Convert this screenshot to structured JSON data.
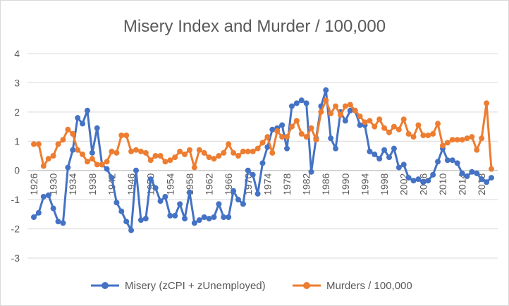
{
  "chart_data": {
    "type": "line",
    "title": "Misery Index and Murder / 100,000",
    "xlabel": "",
    "ylabel": "",
    "ylim": [
      -3,
      4
    ],
    "y_ticks": [
      "4",
      "3",
      "2",
      "1",
      "0",
      "-1",
      "-2",
      "-3"
    ],
    "x_tick_labels": [
      "1926",
      "1930",
      "1934",
      "1938",
      "1942",
      "1946",
      "1950",
      "1954",
      "1958",
      "1962",
      "1966",
      "1970",
      "1974",
      "1978",
      "1982",
      "1986",
      "1990",
      "1994",
      "1998",
      "2002",
      "2006",
      "2010",
      "2014",
      "2018"
    ],
    "x": [
      1926,
      1927,
      1928,
      1929,
      1930,
      1931,
      1932,
      1933,
      1934,
      1935,
      1936,
      1937,
      1938,
      1939,
      1940,
      1941,
      1942,
      1943,
      1944,
      1945,
      1946,
      1947,
      1948,
      1949,
      1950,
      1951,
      1952,
      1953,
      1954,
      1955,
      1956,
      1957,
      1958,
      1959,
      1960,
      1961,
      1962,
      1963,
      1964,
      1965,
      1966,
      1967,
      1968,
      1969,
      1970,
      1971,
      1972,
      1973,
      1974,
      1975,
      1976,
      1977,
      1978,
      1979,
      1980,
      1981,
      1982,
      1983,
      1984,
      1985,
      1986,
      1987,
      1988,
      1989,
      1990,
      1991,
      1992,
      1993,
      1994,
      1995,
      1996,
      1997,
      1998,
      1999,
      2000,
      2001,
      2002,
      2003,
      2004,
      2005,
      2006,
      2007,
      2008,
      2009,
      2010,
      2011,
      2012,
      2013,
      2014,
      2015,
      2016,
      2017,
      2018,
      2019,
      2020
    ],
    "legend_position": "bottom",
    "grid": true,
    "series": [
      {
        "name": "Misery (zCPI + zUnemployed)",
        "color": "#4472C4",
        "values": [
          -1.6,
          -1.45,
          -0.9,
          -0.85,
          -1.3,
          -1.75,
          -1.8,
          0.1,
          0.7,
          1.8,
          1.6,
          2.05,
          0.6,
          1.45,
          0.2,
          0.05,
          -0.25,
          -1.1,
          -1.4,
          -1.75,
          -2.05,
          0.0,
          -1.7,
          -1.65,
          -0.3,
          -0.6,
          -1.05,
          -0.9,
          -1.55,
          -1.55,
          -1.15,
          -1.65,
          -0.75,
          -1.8,
          -1.7,
          -1.6,
          -1.65,
          -1.6,
          -1.15,
          -1.6,
          -1.6,
          -0.7,
          -1.0,
          -1.15,
          0.0,
          -0.15,
          -0.8,
          0.25,
          0.8,
          1.4,
          1.45,
          1.55,
          0.75,
          2.2,
          2.3,
          2.4,
          2.3,
          -0.05,
          1.1,
          2.2,
          2.75,
          1.1,
          0.75,
          2.0,
          1.7,
          2.05,
          2.05,
          1.55,
          1.55,
          0.65,
          0.55,
          0.4,
          0.7,
          0.45,
          0.75,
          0.1,
          0.2,
          -0.25,
          -0.35,
          -0.3,
          -0.4,
          -0.35,
          -0.15,
          0.3,
          0.75,
          0.35,
          0.35,
          0.25,
          -0.1,
          -0.2,
          -0.05,
          -0.1,
          -0.3,
          -0.4,
          -0.25
        ]
      },
      {
        "name": "Murders / 100,000",
        "color": "#ED7D31",
        "values": [
          0.9,
          0.9,
          0.15,
          0.4,
          0.5,
          0.9,
          1.05,
          1.4,
          1.25,
          0.7,
          0.55,
          0.3,
          0.4,
          0.2,
          0.2,
          0.3,
          0.65,
          0.6,
          1.2,
          1.2,
          0.65,
          0.7,
          0.65,
          0.6,
          0.35,
          0.5,
          0.5,
          0.3,
          0.35,
          0.45,
          0.65,
          0.55,
          0.7,
          0.1,
          0.7,
          0.6,
          0.45,
          0.4,
          0.5,
          0.6,
          0.9,
          0.6,
          0.5,
          0.65,
          0.65,
          0.65,
          0.75,
          0.95,
          1.15,
          0.6,
          1.35,
          1.15,
          1.15,
          1.5,
          1.7,
          1.25,
          1.15,
          1.45,
          1.05,
          2.0,
          2.4,
          1.95,
          2.2,
          1.9,
          2.2,
          2.25,
          2.05,
          1.85,
          1.65,
          1.7,
          1.5,
          1.75,
          1.45,
          1.3,
          1.5,
          1.4,
          1.75,
          1.25,
          1.15,
          1.55,
          1.2,
          1.2,
          1.25,
          1.6,
          0.85,
          0.95,
          1.05,
          1.05,
          1.05,
          1.1,
          1.15,
          0.7,
          1.1,
          2.3,
          0.05
        ]
      }
    ]
  }
}
